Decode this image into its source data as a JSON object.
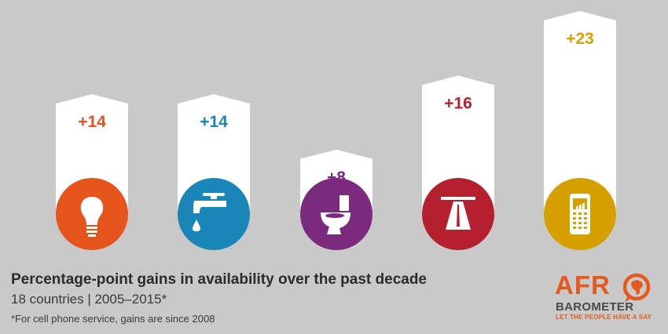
{
  "chart_data": {
    "type": "bar",
    "title": "Percentage-point gains in availability over the past decade",
    "subtitle": "18 countries | 2005–2015*",
    "footnote": "*For cell phone service, gains are since 2008",
    "categories": [
      "lightbulb-icon",
      "water-tap-icon",
      "toilet-icon",
      "road-icon",
      "cell-phone-icon"
    ],
    "values": [
      14,
      14,
      8,
      16,
      23
    ],
    "labels": [
      "+14",
      "+14",
      "+8",
      "+16",
      "+23"
    ],
    "colors": [
      "#e4541b",
      "#1a86b8",
      "#7b2a7e",
      "#b5202e",
      "#d6a100"
    ],
    "ylim": [
      0,
      23
    ]
  },
  "logo": {
    "word": "AFR",
    "word2": "BAROMETER",
    "tagline": "LET THE PEOPLE HAVE A SAY",
    "accent": "#e45a1e"
  }
}
